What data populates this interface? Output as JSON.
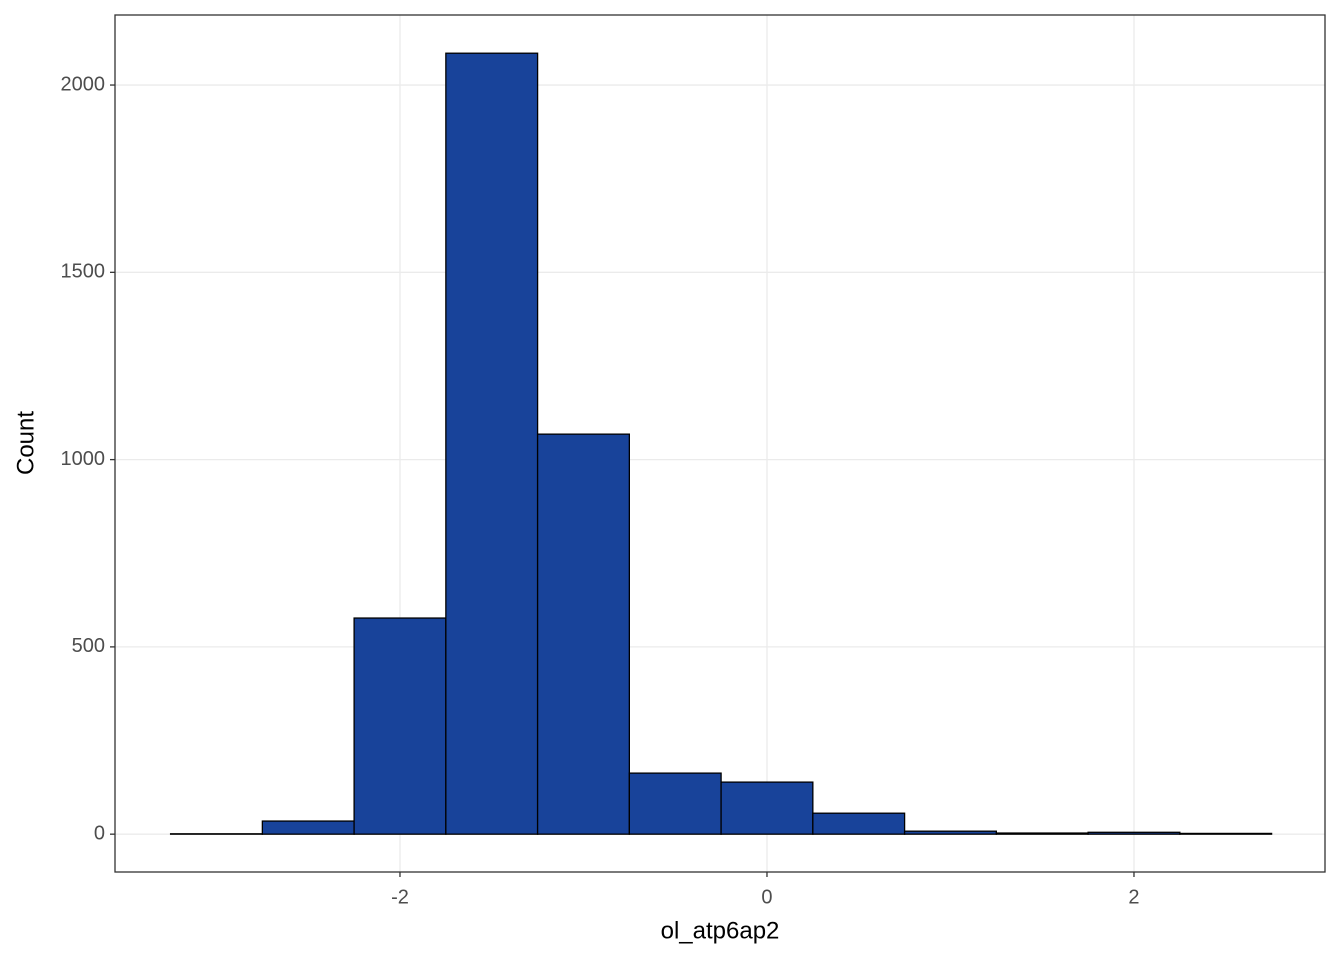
{
  "chart_data": {
    "type": "histogram",
    "x_label": "ol_atp6ap2",
    "y_label": "Count",
    "bins": [
      -3.25,
      -2.75,
      -2.25,
      -1.75,
      -1.25,
      -0.75,
      -0.25,
      0.25,
      0.75,
      1.25,
      1.75,
      2.25,
      2.75
    ],
    "values": [
      1,
      35,
      577,
      2085,
      1068,
      163,
      139,
      56,
      8,
      3,
      5,
      2
    ],
    "color": "#18439a",
    "edge_color": "#000000",
    "xlim": [
      -3.553,
      3.041
    ],
    "ylim": [
      -101,
      2187
    ],
    "xticks": [
      -2,
      0,
      2
    ],
    "yticks": [
      0,
      500,
      1000,
      1500,
      2000
    ],
    "grid": true
  }
}
